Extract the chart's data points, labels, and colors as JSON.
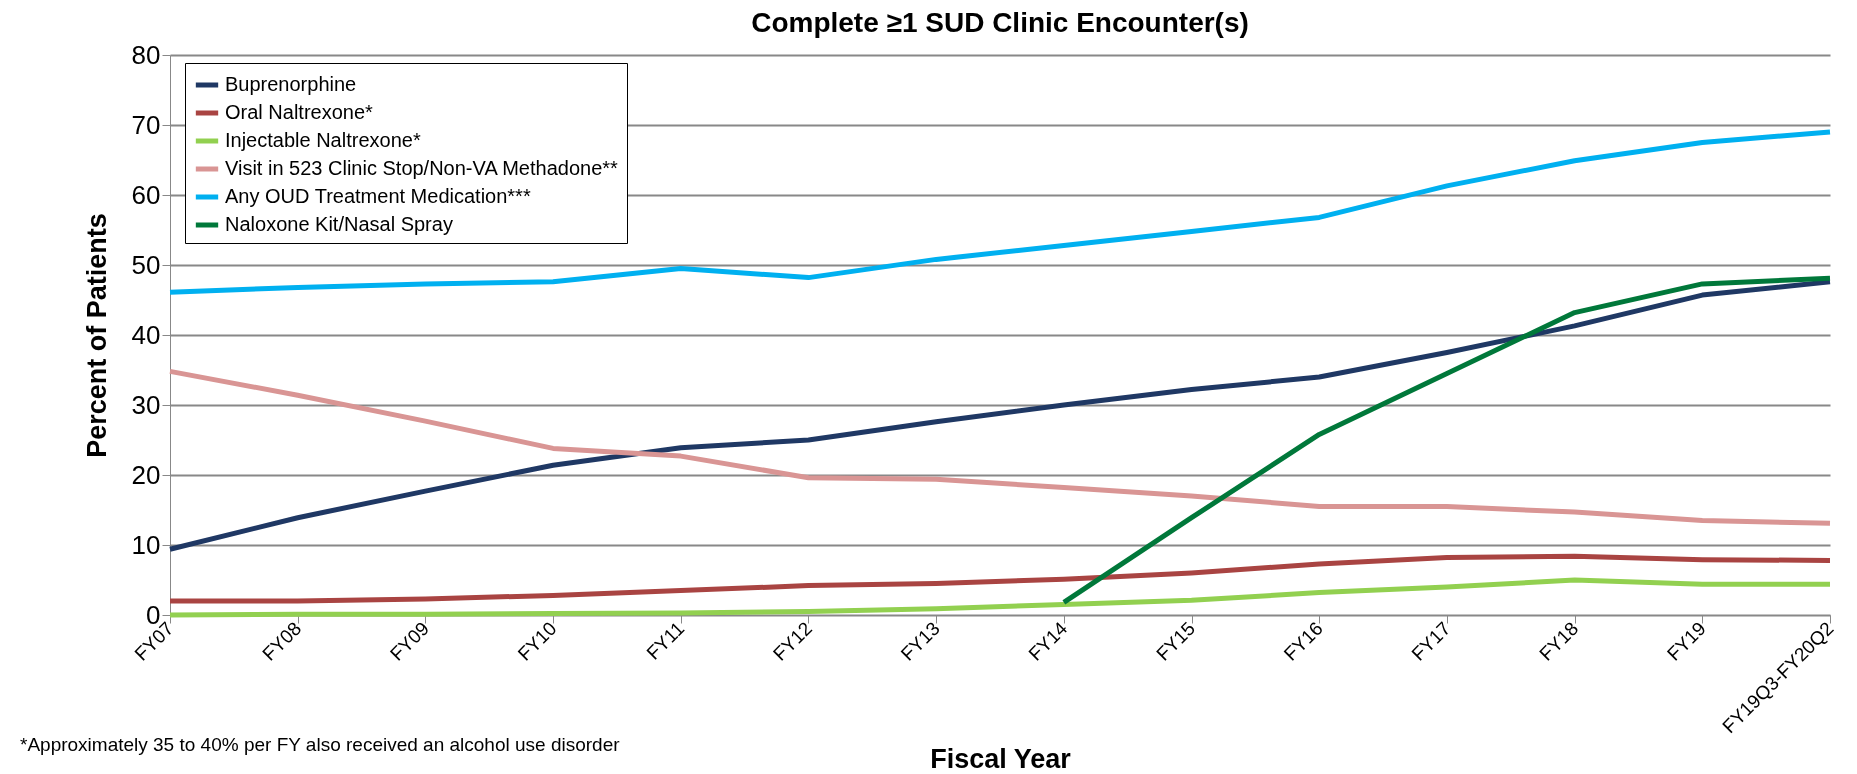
{
  "chart_data": {
    "type": "line",
    "title": "Complete ≥1 SUD Clinic Encounter(s)",
    "xlabel": "Fiscal Year",
    "ylabel": "Percent of Patients",
    "categories": [
      "FY07",
      "FY08",
      "FY09",
      "FY10",
      "FY11",
      "FY12",
      "FY13",
      "FY14",
      "FY15",
      "FY16",
      "FY17",
      "FY18",
      "FY19",
      "FY19Q3-FY20Q2"
    ],
    "series": [
      {
        "name": "Buprenorphine",
        "color": "#1f3864",
        "values": [
          9.4,
          13.9,
          17.7,
          21.4,
          23.9,
          25.0,
          27.6,
          30.0,
          32.2,
          34.0,
          37.5,
          41.3,
          45.7,
          47.6
        ]
      },
      {
        "name": "Oral Naltrexone*",
        "color": "#a94442",
        "values": [
          2.0,
          2.0,
          2.3,
          2.8,
          3.5,
          4.2,
          4.5,
          5.1,
          6.0,
          7.3,
          8.2,
          8.4,
          7.9,
          7.8
        ]
      },
      {
        "name": "Injectable Naltrexone*",
        "color": "#92d050",
        "values": [
          0,
          0.1,
          0.1,
          0.2,
          0.3,
          0.5,
          0.9,
          1.5,
          2.1,
          3.2,
          4.0,
          5.0,
          4.4,
          4.4
        ]
      },
      {
        "name": "Visit in 523 Clinic Stop/Non-VA Methadone**",
        "color": "#d99594",
        "values": [
          34.8,
          31.4,
          27.7,
          23.8,
          22.7,
          19.6,
          19.4,
          18.2,
          17.0,
          15.5,
          15.5,
          14.7,
          13.5,
          13.1
        ]
      },
      {
        "name": "Any OUD Treatment Medication***",
        "color": "#00b0f0",
        "values": [
          46.1,
          46.8,
          47.3,
          47.6,
          49.5,
          48.2,
          50.8,
          52.8,
          54.8,
          56.8,
          61.3,
          64.9,
          67.5,
          69.0
        ]
      },
      {
        "name": "Naloxone Kit/Nasal Spray",
        "color": "#00783a",
        "values": [
          null,
          null,
          null,
          null,
          null,
          null,
          null,
          1.8,
          13.9,
          25.8,
          34.5,
          43.2,
          47.3,
          48.1
        ]
      }
    ],
    "ylim": [
      0,
      80
    ],
    "yticks": [
      0,
      10,
      20,
      30,
      40,
      50,
      60,
      70,
      80
    ],
    "grid": "y",
    "legend": "top left",
    "marker": "none",
    "line_style": "solid",
    "annotations": [
      "*Approximately 35 to 40% per FY also received an alcohol use disorder"
    ]
  }
}
